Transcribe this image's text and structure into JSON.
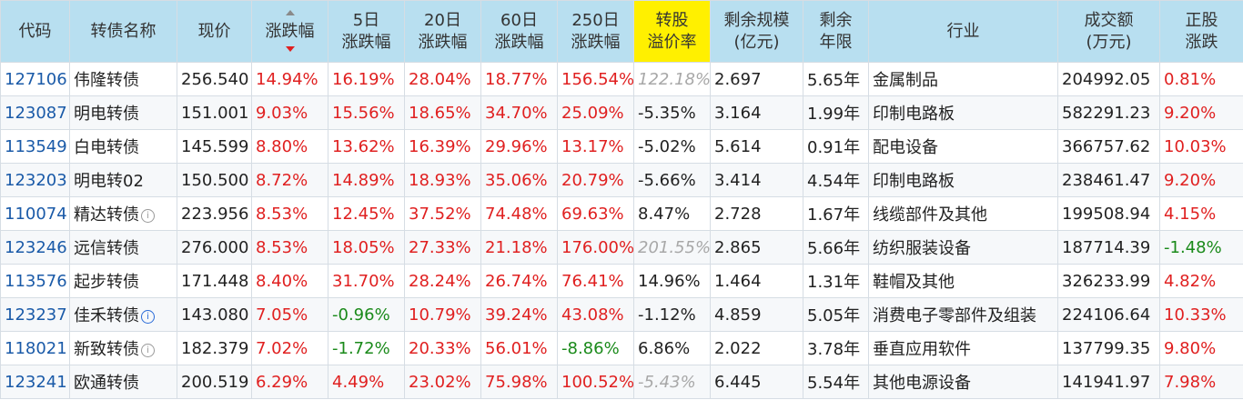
{
  "header": {
    "code": "代码",
    "name": "转债名称",
    "price": "现价",
    "change": "涨跌幅",
    "d5": [
      "5日",
      "涨跌幅"
    ],
    "d20": [
      "20日",
      "涨跌幅"
    ],
    "d60": [
      "60日",
      "涨跌幅"
    ],
    "d250": [
      "250日",
      "涨跌幅"
    ],
    "premium": [
      "转股",
      "溢价率"
    ],
    "scale": [
      "剩余规模",
      "(亿元)"
    ],
    "years": [
      "剩余",
      "年限"
    ],
    "industry": "行业",
    "volume": [
      "成交额",
      "(万元)"
    ],
    "stock_change": [
      "正股",
      "涨跌"
    ]
  },
  "sort": {
    "column": "change",
    "direction": "desc"
  },
  "colors": {
    "up": "#e02020",
    "down": "#1a8a1a",
    "code": "#1a5aa8",
    "header_bg": "#b8dff0",
    "highlight_bg": "#fff000"
  },
  "rows": [
    {
      "code": "127106",
      "name": "伟隆转债",
      "icon": "",
      "price": "256.540",
      "change": "14.94%",
      "d5": "16.19%",
      "d20": "28.04%",
      "d60": "18.77%",
      "d250": "156.54%",
      "premium": "122.18%",
      "premium_faded": true,
      "scale": "2.697",
      "years": "5.65年",
      "industry": "金属制品",
      "volume": "204992.05",
      "stock_change": "0.81%"
    },
    {
      "code": "123087",
      "name": "明电转债",
      "icon": "",
      "price": "151.001",
      "change": "9.03%",
      "d5": "15.56%",
      "d20": "18.65%",
      "d60": "34.70%",
      "d250": "25.09%",
      "premium": "-5.35%",
      "premium_faded": false,
      "scale": "3.164",
      "years": "1.99年",
      "industry": "印制电路板",
      "volume": "582291.23",
      "stock_change": "9.20%"
    },
    {
      "code": "113549",
      "name": "白电转债",
      "icon": "",
      "price": "145.599",
      "change": "8.80%",
      "d5": "13.62%",
      "d20": "16.39%",
      "d60": "29.96%",
      "d250": "13.17%",
      "premium": "-5.02%",
      "premium_faded": false,
      "scale": "5.614",
      "years": "0.91年",
      "industry": "配电设备",
      "volume": "366757.62",
      "stock_change": "10.03%"
    },
    {
      "code": "123203",
      "name": "明电转02",
      "icon": "",
      "price": "150.500",
      "change": "8.72%",
      "d5": "14.89%",
      "d20": "18.93%",
      "d60": "35.06%",
      "d250": "20.79%",
      "premium": "-5.66%",
      "premium_faded": false,
      "scale": "3.414",
      "years": "4.54年",
      "industry": "印制电路板",
      "volume": "238461.47",
      "stock_change": "9.20%"
    },
    {
      "code": "110074",
      "name": "精达转债",
      "icon": "gray",
      "price": "223.956",
      "change": "8.53%",
      "d5": "12.45%",
      "d20": "37.52%",
      "d60": "74.48%",
      "d250": "69.63%",
      "premium": "8.47%",
      "premium_faded": false,
      "scale": "2.728",
      "years": "1.67年",
      "industry": "线缆部件及其他",
      "volume": "199508.94",
      "stock_change": "4.15%"
    },
    {
      "code": "123246",
      "name": "远信转债",
      "icon": "",
      "price": "276.000",
      "change": "8.53%",
      "d5": "18.05%",
      "d20": "27.33%",
      "d60": "21.18%",
      "d250": "176.00%",
      "premium": "201.55%",
      "premium_faded": true,
      "scale": "2.865",
      "years": "5.66年",
      "industry": "纺织服装设备",
      "volume": "187714.39",
      "stock_change": "-1.48%"
    },
    {
      "code": "113576",
      "name": "起步转债",
      "icon": "",
      "price": "171.448",
      "change": "8.40%",
      "d5": "31.70%",
      "d20": "28.24%",
      "d60": "26.74%",
      "d250": "76.41%",
      "premium": "14.96%",
      "premium_faded": false,
      "scale": "1.464",
      "years": "1.31年",
      "industry": "鞋帽及其他",
      "volume": "326233.99",
      "stock_change": "4.82%"
    },
    {
      "code": "123237",
      "name": "佳禾转债",
      "icon": "blue",
      "price": "143.080",
      "change": "7.05%",
      "d5": "-0.96%",
      "d20": "10.79%",
      "d60": "39.24%",
      "d250": "43.08%",
      "premium": "-1.12%",
      "premium_faded": false,
      "scale": "4.859",
      "years": "5.05年",
      "industry": "消费电子零部件及组装",
      "volume": "224106.64",
      "stock_change": "10.33%"
    },
    {
      "code": "118021",
      "name": "新致转债",
      "icon": "gray",
      "price": "182.379",
      "change": "7.02%",
      "d5": "-1.72%",
      "d20": "20.33%",
      "d60": "56.01%",
      "d250": "-8.86%",
      "premium": "6.86%",
      "premium_faded": false,
      "scale": "2.022",
      "years": "3.78年",
      "industry": "垂直应用软件",
      "volume": "137799.35",
      "stock_change": "9.80%"
    },
    {
      "code": "123241",
      "name": "欧通转债",
      "icon": "",
      "price": "200.519",
      "change": "6.29%",
      "d5": "4.49%",
      "d20": "23.02%",
      "d60": "75.98%",
      "d250": "100.52%",
      "premium": "-5.43%",
      "premium_faded": true,
      "scale": "6.445",
      "years": "5.54年",
      "industry": "其他电源设备",
      "volume": "141941.97",
      "stock_change": "7.98%"
    }
  ]
}
